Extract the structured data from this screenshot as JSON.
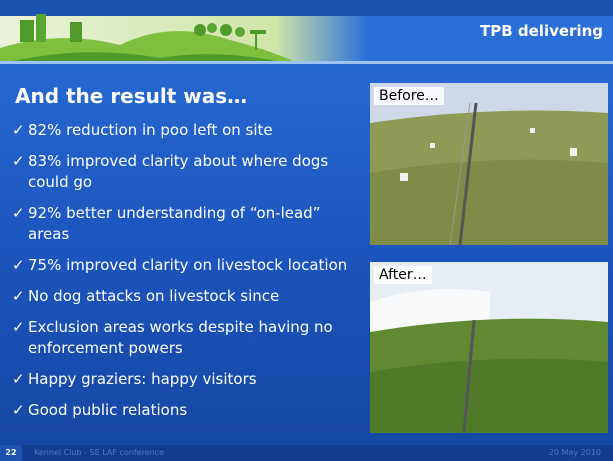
{
  "header": {
    "title": "TPB delivering"
  },
  "heading": "And the result was…",
  "bullets": [
    "82% reduction in poo left on site",
    "83% improved clarity about where dogs could go",
    "92% better understanding of “on-lead” areas",
    "75% improved clarity on livestock location",
    "No dog attacks on livestock since",
    "Exclusion areas works despite having no enforcement powers",
    "Happy graziers: happy visitors",
    "Good public relations"
  ],
  "photos": [
    {
      "label": "Before…"
    },
    {
      "label": "After…"
    }
  ],
  "footer": {
    "page": "22",
    "text": "Kennel Club - SE LAF conference",
    "date": "20 May 2010"
  }
}
